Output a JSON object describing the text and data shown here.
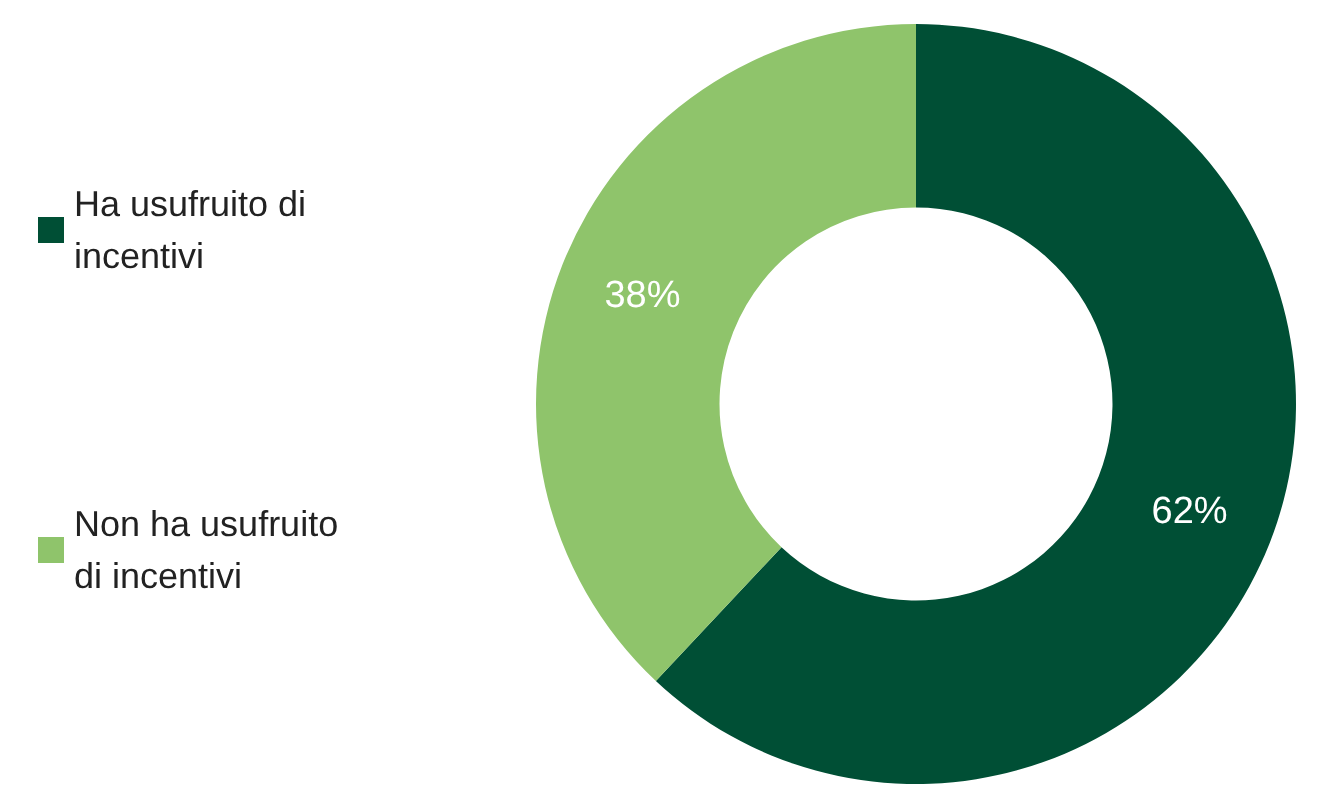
{
  "chart_data": {
    "type": "donut",
    "categories": [
      "Ha usufruito di incentivi",
      "Non ha usufruito di incentivi"
    ],
    "values": [
      62,
      38
    ],
    "colors": [
      "#004f35",
      "#8fc46b"
    ],
    "value_labels": [
      "62%",
      "38%"
    ],
    "legend": "left"
  }
}
